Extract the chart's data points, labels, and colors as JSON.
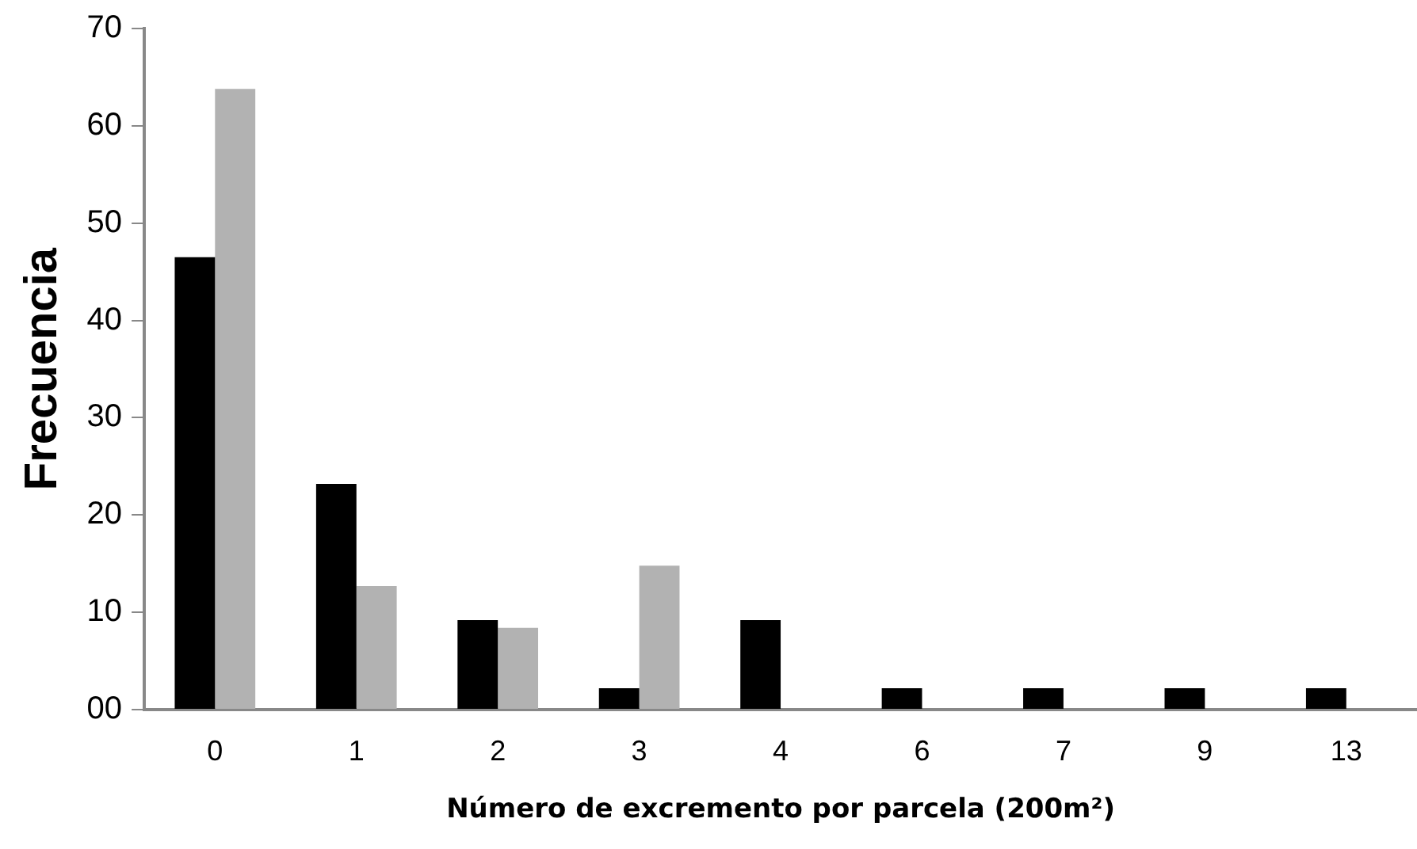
{
  "chart_data": {
    "type": "bar",
    "xlabel": "Número de excremento por parcela (200m²)",
    "ylabel": "Frecuencia",
    "categories": [
      "0",
      "1",
      "2",
      "3",
      "4",
      "6",
      "7",
      "9",
      "13"
    ],
    "series": [
      {
        "color": "#000000",
        "values": [
          46.5,
          23.2,
          9.2,
          2.2,
          9.2,
          2.2,
          2.2,
          2.2,
          2.2
        ]
      },
      {
        "color": "#b2b2b2",
        "values": [
          63.8,
          12.7,
          8.4,
          14.8,
          0,
          0,
          0,
          0,
          0
        ]
      }
    ],
    "ylim": [
      0,
      70
    ],
    "yticks": [
      {
        "value": 0,
        "label": "00"
      },
      10,
      20,
      30,
      40,
      50,
      60,
      70
    ],
    "grid": false,
    "legend": false
  }
}
